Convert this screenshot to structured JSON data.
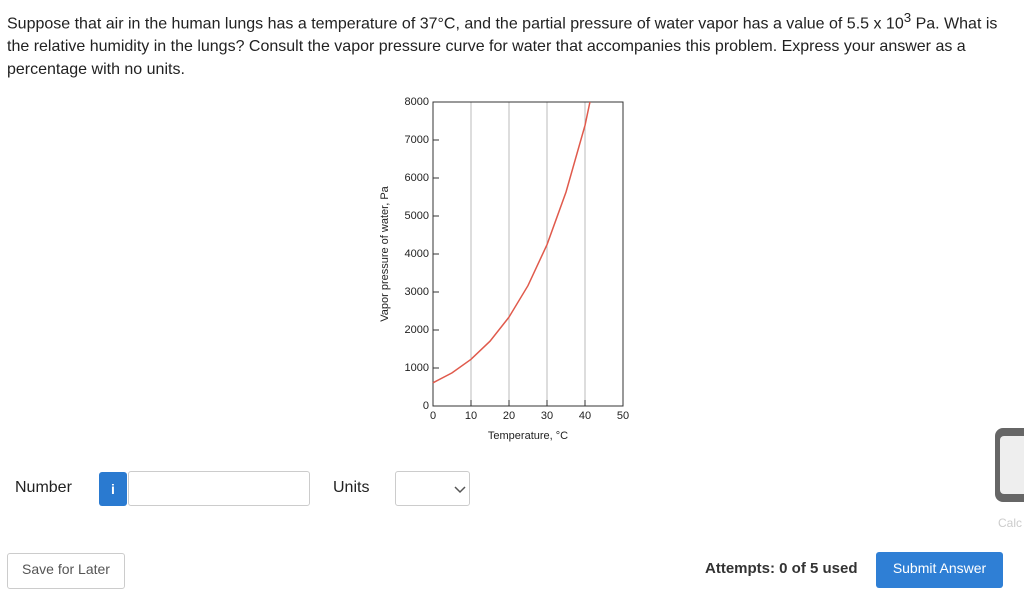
{
  "question": {
    "text_before": "Suppose that air in the human lungs has a temperature of 37°C, and the partial pressure of water vapor has a value of 5.5 x 10",
    "sup": "3",
    "text_after": " Pa. What is the relative humidity in the lungs? Consult the vapor pressure curve for water that accompanies this problem. Express your answer as a percentage with no units."
  },
  "chart_data": {
    "type": "line",
    "x_label": "Temperature, °C",
    "y_label": "Vapor pressure of water, Pa",
    "x": [
      0,
      5,
      10,
      15,
      20,
      25,
      30,
      35,
      40,
      41.3
    ],
    "series": [
      {
        "color": "#e05a4c",
        "values": [
          611,
          872,
          1228,
          1705,
          2339,
          3169,
          4246,
          5628,
          7384,
          8000
        ]
      }
    ],
    "xlim": [
      0,
      50
    ],
    "xticks": [
      0,
      10,
      20,
      30,
      40,
      50
    ],
    "ylim": [
      0,
      8000
    ],
    "yticks": [
      0,
      1000,
      2000,
      3000,
      4000,
      5000,
      6000,
      7000,
      8000
    ],
    "grid": "x"
  },
  "form": {
    "number_label": "Number",
    "info_button": "i",
    "units_label": "Units",
    "calculator_label": "Calc",
    "save_button": "Save for Later",
    "attempts": "Attempts: 0 of 5 used",
    "submit_button": "Submit Answer"
  }
}
